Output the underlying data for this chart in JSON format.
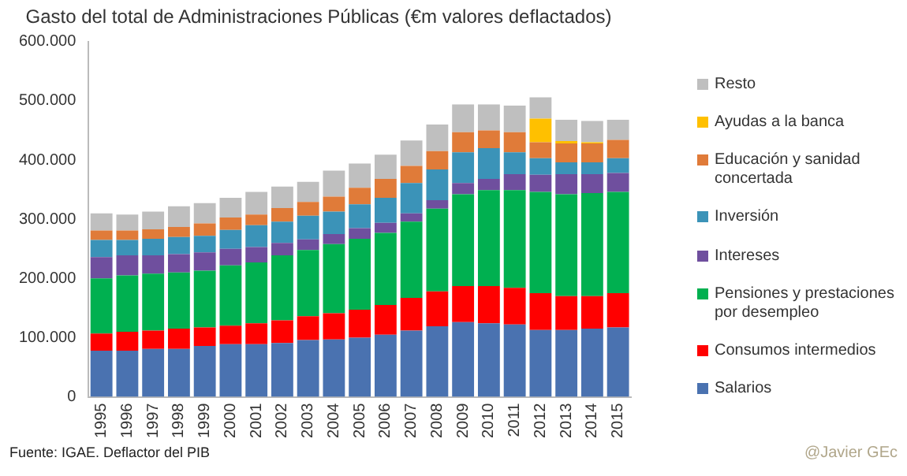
{
  "chart_data": {
    "type": "bar",
    "title": "Gasto del total de Administraciones Públicas (€m valores deflactados)",
    "categories": [
      "1995",
      "1996",
      "1997",
      "1998",
      "1999",
      "2000",
      "2001",
      "2002",
      "2003",
      "2004",
      "2005",
      "2006",
      "2007",
      "2008",
      "2009",
      "2010",
      "2011",
      "2012",
      "2013",
      "2014",
      "2015"
    ],
    "stacked": true,
    "legend": "right",
    "ylim": [
      0,
      600000
    ],
    "yticks": [
      {
        "value": 0,
        "label": "0"
      },
      {
        "value": 100000,
        "label": "100.000"
      },
      {
        "value": 200000,
        "label": "200.000"
      },
      {
        "value": 300000,
        "label": "300.000"
      },
      {
        "value": 400000,
        "label": "400.000"
      },
      {
        "value": 500000,
        "label": "500.000"
      },
      {
        "value": 600000,
        "label": "600.000"
      }
    ],
    "series": [
      {
        "name": "Salarios",
        "color": "#4a72b0",
        "values": [
          78000,
          78000,
          81000,
          81000,
          86000,
          89000,
          89000,
          91000,
          96000,
          97000,
          100000,
          105000,
          112000,
          119000,
          126000,
          124000,
          122000,
          113000,
          113000,
          115000,
          117000
        ]
      },
      {
        "name": "Consumos intermedios",
        "color": "#ff0000",
        "values": [
          29000,
          32000,
          31000,
          34000,
          31000,
          31000,
          35000,
          38000,
          40000,
          44000,
          47000,
          50000,
          55000,
          59000,
          61000,
          63000,
          62000,
          62000,
          57000,
          55000,
          58000
        ]
      },
      {
        "name": "Pensiones y prestaciones por desempleo",
        "color": "#00b050",
        "values": [
          93000,
          95000,
          96000,
          95000,
          96000,
          102000,
          103000,
          110000,
          112000,
          117000,
          120000,
          122000,
          129000,
          140000,
          155000,
          162000,
          165000,
          171000,
          172000,
          174000,
          171000
        ]
      },
      {
        "name": "Intereses",
        "color": "#6f4f9e",
        "values": [
          36000,
          34000,
          31000,
          31000,
          31000,
          28000,
          26000,
          21000,
          18000,
          17000,
          18000,
          17000,
          14000,
          14000,
          19000,
          19000,
          27000,
          29000,
          34000,
          32000,
          32000
        ]
      },
      {
        "name": "Inversión",
        "color": "#3b93b8",
        "values": [
          29000,
          26000,
          28000,
          29000,
          28000,
          32000,
          37000,
          36000,
          40000,
          38000,
          40000,
          42000,
          51000,
          52000,
          52000,
          52000,
          37000,
          28000,
          20000,
          20000,
          25000
        ]
      },
      {
        "name": "Educación y sanidad concertada",
        "color": "#e07b39",
        "values": [
          16000,
          16000,
          16000,
          17000,
          21000,
          21000,
          18000,
          23000,
          23000,
          25000,
          28000,
          32000,
          29000,
          31000,
          34000,
          30000,
          34000,
          27000,
          32000,
          32000,
          31000
        ]
      },
      {
        "name": "Ayudas a la banca",
        "color": "#ffc000",
        "values": [
          null,
          null,
          null,
          null,
          null,
          null,
          null,
          null,
          null,
          null,
          null,
          null,
          null,
          null,
          null,
          null,
          null,
          40000,
          4000,
          2000,
          null
        ]
      },
      {
        "name": "Resto",
        "color": "#bfbfbf",
        "values": [
          29000,
          27000,
          30000,
          35000,
          34000,
          33000,
          38000,
          36000,
          34000,
          44000,
          41000,
          41000,
          43000,
          45000,
          47000,
          44000,
          45000,
          36000,
          36000,
          36000,
          34000
        ]
      }
    ],
    "annotations": [
      "Fuente: IGAE. Deflactor del PIB",
      "@Javier GEc"
    ]
  }
}
